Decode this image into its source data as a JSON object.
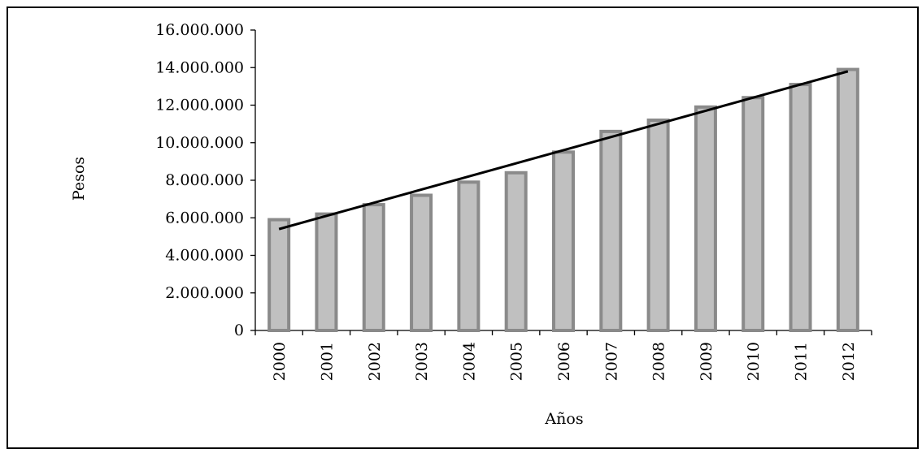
{
  "chart_data": {
    "type": "bar",
    "title": "",
    "xlabel": "Años",
    "ylabel": "Pesos",
    "categories": [
      "2000",
      "2001",
      "2002",
      "2003",
      "2004",
      "2005",
      "2006",
      "2007",
      "2008",
      "2009",
      "2010",
      "2011",
      "2012"
    ],
    "values": [
      5900000,
      6200000,
      6700000,
      7200000,
      7900000,
      8400000,
      9500000,
      10600000,
      11200000,
      11900000,
      12400000,
      13100000,
      13900000
    ],
    "ylim": [
      0,
      16000000
    ],
    "yticks": [
      "0",
      "2.000.000",
      "4.000.000",
      "6.000.000",
      "8.000.000",
      "10.000.000",
      "12.000.000",
      "14.000.000",
      "16.000.000"
    ],
    "trendline": {
      "type": "linear",
      "start": 5400000,
      "end": 13800000
    },
    "grid": false,
    "bar_fill": "#c0c0c0",
    "bar_stroke": "#8a8a8a",
    "trend_color": "#000000"
  }
}
